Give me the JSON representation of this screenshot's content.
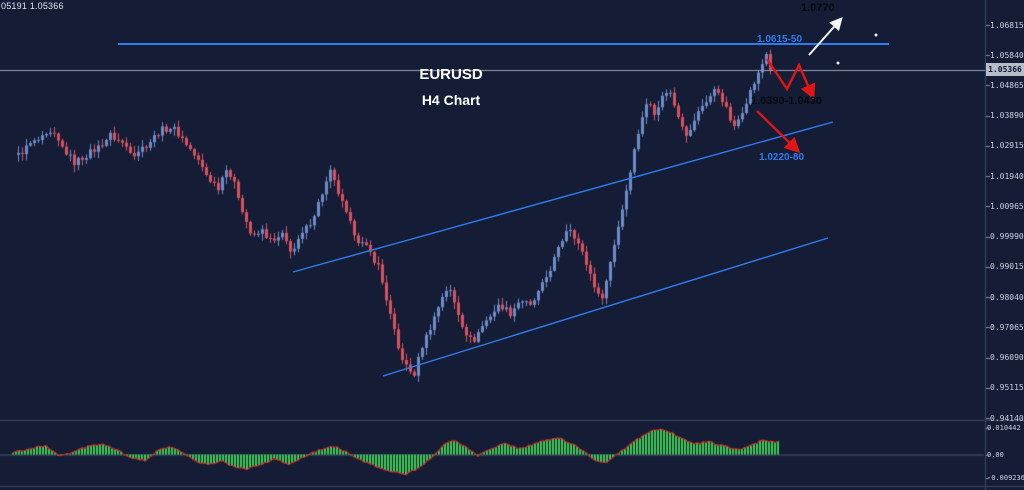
{
  "window": {
    "symbol_info": "05191 1.05366"
  },
  "annotations": {
    "title": "EURUSD",
    "subtitle": "H4 Chart",
    "target_label": "1.0770",
    "resistance_label": "1.0615-50",
    "zone_label": "1.0390-1.0430",
    "support_label": "1.0220-80"
  },
  "colors": {
    "background": "#141d35",
    "axis_text": "#c9d1e2",
    "bull_candle": "#6e8cc9",
    "bear_candle": "#d9525e",
    "trend_blue": "#2f7ded",
    "annotation_black": "#060910",
    "arrow_white": "#f2f4f8",
    "arrow_red": "#e01616",
    "histogram_green": "#3ecb54",
    "signal_red": "#d42a2a",
    "price_line": "#99a2b6",
    "price_box_bg": "#b6bdc9",
    "price_box_text": "#0d1530",
    "divider": "#3a4663"
  },
  "chart_data": {
    "type": "candlestick",
    "symbol": "EURUSD",
    "timeframe": "H4",
    "title": "EURUSD H4 Chart",
    "current_price": 1.05366,
    "current_price_label": "1.05366",
    "ylim": [
      0.9414,
      1.06815
    ],
    "price_axis_labels": [
      "1.06815",
      "1.05840",
      "1.04865",
      "1.03890",
      "1.02915",
      "1.01940",
      "1.00965",
      "0.99990",
      "0.99015",
      "0.98040",
      "0.97065",
      "0.96090",
      "0.95115",
      "0.94140"
    ],
    "price_y_map": {
      "p1": 1.06815,
      "y1": 25,
      "p2": 0.9414,
      "y2": 418
    },
    "candles": {
      "x0": 18,
      "dx": 4,
      "width": 3,
      "count": 189
    },
    "price_path": [
      [
        18,
        1.0262
      ],
      [
        30,
        1.0298
      ],
      [
        44,
        1.0318
      ],
      [
        52,
        1.033
      ],
      [
        62,
        1.0286
      ],
      [
        74,
        1.0238
      ],
      [
        86,
        1.0262
      ],
      [
        98,
        1.0288
      ],
      [
        110,
        1.0326
      ],
      [
        122,
        1.03
      ],
      [
        134,
        1.0268
      ],
      [
        148,
        1.03
      ],
      [
        160,
        1.0342
      ],
      [
        172,
        1.0352
      ],
      [
        184,
        1.0308
      ],
      [
        196,
        1.0252
      ],
      [
        208,
        1.0188
      ],
      [
        218,
        1.0158
      ],
      [
        226,
        1.0224
      ],
      [
        236,
        1.0152
      ],
      [
        244,
        1.0066
      ],
      [
        252,
        0.9992
      ],
      [
        262,
        1.0018
      ],
      [
        272,
        0.9978
      ],
      [
        282,
        1.0002
      ],
      [
        292,
        0.9948
      ],
      [
        302,
        1.0006
      ],
      [
        312,
        1.0056
      ],
      [
        322,
        1.014
      ],
      [
        330,
        1.0206
      ],
      [
        338,
        1.014
      ],
      [
        348,
        1.0052
      ],
      [
        358,
        0.9988
      ],
      [
        368,
        0.9956
      ],
      [
        378,
        0.9904
      ],
      [
        388,
        0.9772
      ],
      [
        398,
        0.9636
      ],
      [
        408,
        0.9566
      ],
      [
        414,
        0.9556
      ],
      [
        422,
        0.9648
      ],
      [
        432,
        0.9722
      ],
      [
        442,
        0.9808
      ],
      [
        448,
        0.9838
      ],
      [
        456,
        0.9768
      ],
      [
        464,
        0.97
      ],
      [
        472,
        0.9656
      ],
      [
        480,
        0.9702
      ],
      [
        490,
        0.9746
      ],
      [
        500,
        0.978
      ],
      [
        510,
        0.9752
      ],
      [
        520,
        0.9798
      ],
      [
        530,
        0.9772
      ],
      [
        540,
        0.9828
      ],
      [
        550,
        0.9896
      ],
      [
        560,
        0.9972
      ],
      [
        568,
        1.0038
      ],
      [
        576,
        0.9992
      ],
      [
        584,
        0.9928
      ],
      [
        592,
        0.9862
      ],
      [
        600,
        0.9788
      ],
      [
        606,
        0.9856
      ],
      [
        612,
        0.9948
      ],
      [
        618,
        1.0034
      ],
      [
        624,
        1.0118
      ],
      [
        630,
        1.0216
      ],
      [
        636,
        1.0308
      ],
      [
        642,
        1.0388
      ],
      [
        648,
        1.0438
      ],
      [
        654,
        1.0402
      ],
      [
        662,
        1.0448
      ],
      [
        668,
        1.0478
      ],
      [
        674,
        1.0424
      ],
      [
        682,
        1.0362
      ],
      [
        688,
        1.0318
      ],
      [
        694,
        1.0376
      ],
      [
        702,
        1.0422
      ],
      [
        710,
        1.0452
      ],
      [
        716,
        1.0478
      ],
      [
        722,
        1.0442
      ],
      [
        728,
        1.0392
      ],
      [
        734,
        1.0348
      ],
      [
        740,
        1.0392
      ],
      [
        746,
        1.0438
      ],
      [
        752,
        1.0482
      ],
      [
        758,
        1.0522
      ],
      [
        762,
        1.0556
      ],
      [
        766,
        1.059
      ],
      [
        770,
        1.05366
      ]
    ],
    "levels": {
      "resistance_zone": [
        1.0615,
        1.065
      ],
      "target": 1.077,
      "sell_zone": [
        1.039,
        1.043
      ],
      "support_zone": [
        1.022,
        1.028
      ]
    },
    "oscillator": {
      "axis_labels": [
        "0.010442",
        "0.00",
        "-0.009236"
      ],
      "y_map": {
        "v1": 0.010442,
        "y1": 428,
        "v2": -0.009236,
        "y2": 478
      },
      "bars": {
        "x0": 12,
        "x1": 777,
        "step": 3
      },
      "values": [
        [
          12,
          0.0008
        ],
        [
          30,
          0.0024
        ],
        [
          45,
          0.0034
        ],
        [
          58,
          -0.0006
        ],
        [
          70,
          0.0004
        ],
        [
          85,
          0.003
        ],
        [
          100,
          0.0042
        ],
        [
          115,
          0.0022
        ],
        [
          130,
          -0.0014
        ],
        [
          145,
          -0.0024
        ],
        [
          158,
          0.0024
        ],
        [
          170,
          0.003
        ],
        [
          182,
          0.0006
        ],
        [
          195,
          -0.0028
        ],
        [
          208,
          -0.0042
        ],
        [
          220,
          -0.0022
        ],
        [
          232,
          -0.0048
        ],
        [
          246,
          -0.0058
        ],
        [
          260,
          -0.0038
        ],
        [
          274,
          -0.0018
        ],
        [
          288,
          -0.0038
        ],
        [
          300,
          -0.0014
        ],
        [
          312,
          0.0008
        ],
        [
          325,
          0.0026
        ],
        [
          335,
          0.0032
        ],
        [
          348,
          0.0004
        ],
        [
          362,
          -0.0028
        ],
        [
          376,
          -0.0048
        ],
        [
          390,
          -0.0066
        ],
        [
          404,
          -0.008
        ],
        [
          418,
          -0.0052
        ],
        [
          432,
          -0.0008
        ],
        [
          444,
          0.0042
        ],
        [
          452,
          0.0056
        ],
        [
          464,
          0.0034
        ],
        [
          476,
          -0.0006
        ],
        [
          490,
          0.0022
        ],
        [
          504,
          0.0044
        ],
        [
          518,
          0.0024
        ],
        [
          532,
          0.004
        ],
        [
          546,
          0.0058
        ],
        [
          560,
          0.0062
        ],
        [
          572,
          0.004
        ],
        [
          584,
          0.001
        ],
        [
          596,
          -0.0026
        ],
        [
          606,
          -0.0032
        ],
        [
          616,
          0.0002
        ],
        [
          630,
          0.0042
        ],
        [
          644,
          0.008
        ],
        [
          656,
          0.01
        ],
        [
          668,
          0.0092
        ],
        [
          680,
          0.0064
        ],
        [
          694,
          0.0042
        ],
        [
          708,
          0.005
        ],
        [
          722,
          0.0034
        ],
        [
          736,
          0.002
        ],
        [
          748,
          0.003
        ],
        [
          760,
          0.0054
        ],
        [
          772,
          0.005
        ]
      ]
    }
  }
}
